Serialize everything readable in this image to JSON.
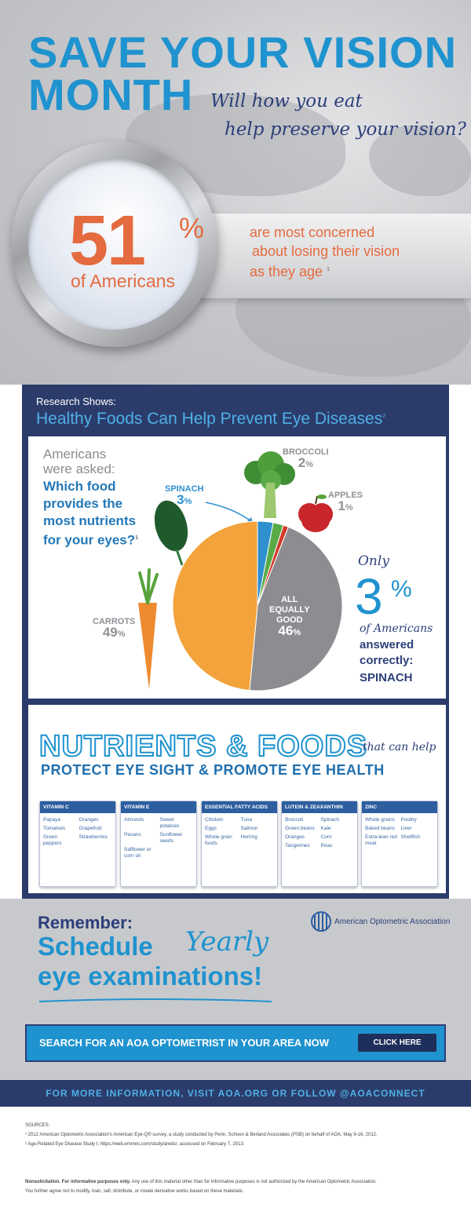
{
  "header": {
    "title_line1": "SAVE YOUR VISION",
    "title_line2": "MONTH",
    "tagline_line1": "Will how you eat",
    "tagline_line2": "help preserve your vision?"
  },
  "stat": {
    "number": "51",
    "percent_sign": "%",
    "subject": "of Americans",
    "concern_line1": "are most concerned",
    "concern_line2": "about losing their vision",
    "concern_line3": "as they age",
    "footnote": "1"
  },
  "research": {
    "label": "Research Shows:",
    "heading": "Healthy Foods Can Help Prevent Eye Diseases",
    "heading_footnote": "2",
    "asked_line1": "Americans",
    "asked_line2": "were asked:",
    "question_line1": "Which food",
    "question_line2": "provides the",
    "question_line3": "most nutrients",
    "question_line4": "for your eyes?",
    "question_footnote": "1"
  },
  "chart_data": {
    "type": "pie",
    "title": "",
    "slices": [
      {
        "label": "SPINACH",
        "value": 3,
        "color": "#2e90cf"
      },
      {
        "label": "BROCCOLI",
        "value": 2,
        "color": "#5aab47"
      },
      {
        "label": "APPLES",
        "value": 1,
        "color": "#d33a2b"
      },
      {
        "label": "ALL EQUALLY GOOD",
        "value": 46,
        "color": "#8c8d90"
      },
      {
        "label": "CARROTS",
        "value": 49,
        "color": "#f3a23c"
      }
    ],
    "value_labels": {
      "spinach": "3",
      "broccoli": "2",
      "apples": "1",
      "all": "46",
      "carrots": "49",
      "pct": "%"
    },
    "label_texts": {
      "all_line1": "ALL",
      "all_line2": "EQUALLY",
      "all_line3": "GOOD"
    }
  },
  "callout": {
    "only": "Only",
    "number": "3",
    "pct": "%",
    "of_americans": "of Americans",
    "answered_line1": "answered",
    "answered_line2": "correctly:",
    "answer": "SPINACH"
  },
  "nutrients": {
    "title": "NUTRIENTS & FOODS",
    "script": "that can help",
    "subtitle": "PROTECT EYE SIGHT & PROMOTE EYE HEALTH",
    "cards": [
      {
        "name": "VITAMIN C",
        "foods": [
          "Papaya",
          "Oranges",
          "Tomatoes",
          "Grapefruit",
          "Green peppers",
          "Strawberries"
        ]
      },
      {
        "name": "VITAMIN E",
        "foods": [
          "Almonds",
          "Sweet potatoes",
          "Pecans",
          "Sunflower seeds",
          "Safflower or corn oil",
          ""
        ]
      },
      {
        "name": "ESSENTIAL FATTY ACIDS",
        "foods": [
          "Chicken",
          "Tuna",
          "Eggs",
          "Salmon",
          "Whole grain foods",
          "Herring"
        ]
      },
      {
        "name": "LUTEIN & ZEAXANTHIN",
        "foods": [
          "Broccoli",
          "Spinach",
          "Green beans",
          "Kale",
          "Oranges",
          "Corn",
          "Tangerines",
          "Peas"
        ]
      },
      {
        "name": "ZINC",
        "foods": [
          "Whole grains",
          "Poultry",
          "Baked beans",
          "Liver",
          "Extra-lean red meat",
          "Shellfish"
        ]
      }
    ]
  },
  "reminder": {
    "remember": "Remember:",
    "schedule": "Schedule",
    "yearly": "Yearly",
    "exams": "eye examinations!",
    "org_name": "American Optometric Association"
  },
  "cta": {
    "search_text": "SEARCH FOR AN AOA OPTOMETRIST IN YOUR AREA NOW",
    "button": "CLICK HERE"
  },
  "footer": {
    "info": "FOR MORE INFORMATION, VISIT AOA.ORG OR FOLLOW @AOACONNECT",
    "sources_label": "SOURCES:",
    "source1": "¹ 2012 American Optometric Association's American Eye-Q® survey, a study conducted by Penn, Schoen & Berland Associates (PSB) on behalf of AOA, May 9-16, 2012.",
    "source2": "² Age-Related Eye Disease Study I, https://web.emmes.com/study/areds/, accessed on February 7, 2013.",
    "disclaimer_bold": "Nonsolicitation. For informative purposes only.",
    "disclaimer_line1": " Any use of this material other than for informative purposes is not authorized by the American Optometric Association.",
    "disclaimer_line2": "You further agree not to modify, loan, sell, distribute, or create derivative works based on these materials."
  },
  "colors": {
    "brand_blue": "#1f93cf",
    "navy": "#2b3c6b",
    "orange": "#e46b3f"
  }
}
